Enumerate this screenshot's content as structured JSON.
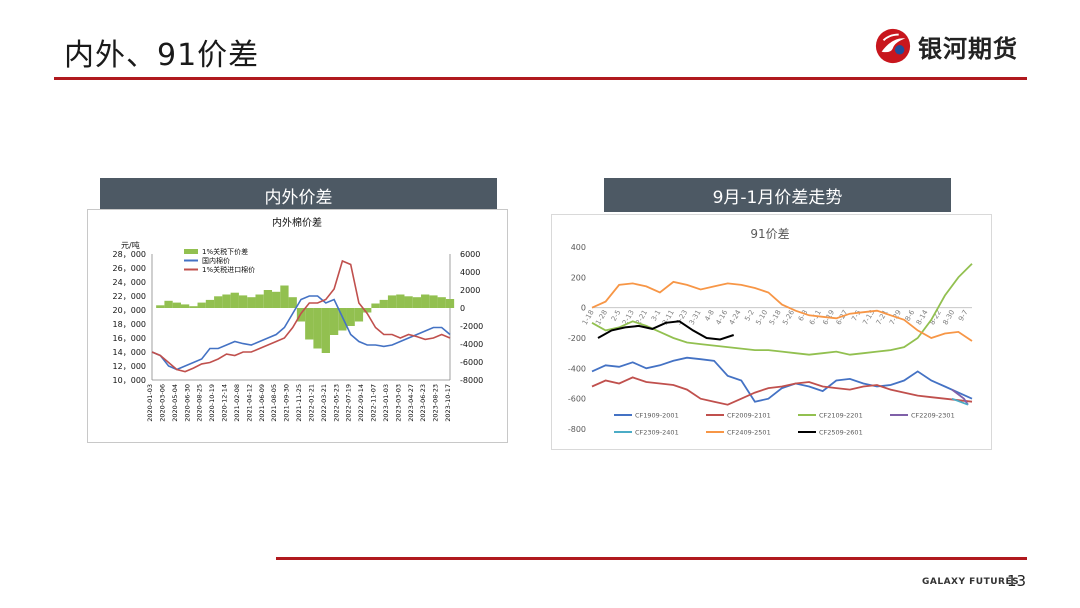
{
  "slide": {
    "title": "内外、91价差",
    "logo_text": "银河期货",
    "footer_brand": "GALAXY FUTURES",
    "page_number": "13",
    "accent_color": "#b0191e",
    "header_color": "#4d5964"
  },
  "left_panel": {
    "header": "内外价差"
  },
  "right_panel": {
    "header": "9月-1月价差走势"
  },
  "chart_data": [
    {
      "type": "line",
      "title": "内外棉价差",
      "ylabel_left": "元/吨",
      "y_left_ticks": [
        "10，000",
        "12，000",
        "14，000",
        "16，000",
        "18，000",
        "20，000",
        "22，000",
        "24，000",
        "26，000",
        "28，000"
      ],
      "y_right_ticks": [
        "-8000",
        "-6000",
        "-4000",
        "-2000",
        "0",
        "2000",
        "4000",
        "6000"
      ],
      "ylim_left": [
        10000,
        28000
      ],
      "ylim_right": [
        -8000,
        6000
      ],
      "x_ticks": [
        "2020-01-03",
        "2020-03-06",
        "2020-05-04",
        "2020-06-30",
        "2020-08-25",
        "2020-10-19",
        "2020-12-14",
        "2021-02-08",
        "2021-04-12",
        "2021-06-09",
        "2021-08-05",
        "2021-09-30",
        "2021-11-25",
        "2022-01-21",
        "2022-03-21",
        "2022-05-23",
        "2022-07-19",
        "2022-09-14",
        "2022-11-07",
        "2023-01-03",
        "2023-03-03",
        "2023-04-27",
        "2023-06-23",
        "2023-08-23",
        "2023-10-17"
      ],
      "legend": [
        "1%关税下价差",
        "国内棉价",
        "1%关税进口棉价"
      ],
      "legend_position": "top-left",
      "series": [
        {
          "name": "1%关税下价差",
          "color": "#92c050",
          "kind": "area",
          "axis": "right",
          "values": [
            0,
            300,
            800,
            600,
            400,
            200,
            600,
            900,
            1300,
            1500,
            1700,
            1400,
            1200,
            1500,
            2000,
            1800,
            2500,
            1200,
            -1500,
            -3500,
            -4500,
            -5000,
            -3000,
            -2500,
            -2000,
            -1500,
            -500,
            500,
            900,
            1400,
            1500,
            1300,
            1200,
            1500,
            1400,
            1200,
            1000
          ]
        },
        {
          "name": "国内棉价",
          "color": "#4472c4",
          "axis": "left",
          "values": [
            14000,
            13500,
            12000,
            11500,
            12000,
            12500,
            13000,
            14500,
            14500,
            15000,
            15500,
            15200,
            15000,
            15500,
            16000,
            16500,
            17500,
            19500,
            21500,
            22000,
            22000,
            21000,
            21500,
            19000,
            16500,
            15500,
            15000,
            15000,
            14800,
            15000,
            15500,
            16000,
            16500,
            17000,
            17500,
            17500,
            16500
          ]
        },
        {
          "name": "1%关税进口棉价",
          "color": "#c0504d",
          "axis": "left",
          "values": [
            14000,
            13500,
            12500,
            11500,
            11200,
            11700,
            12300,
            12500,
            13000,
            13700,
            13500,
            14000,
            14000,
            14500,
            15000,
            15500,
            16000,
            17500,
            19500,
            21000,
            21000,
            21500,
            23000,
            27000,
            26500,
            21000,
            19500,
            17500,
            16500,
            16500,
            16000,
            16500,
            16200,
            15800,
            16000,
            16500,
            16000
          ]
        }
      ]
    },
    {
      "type": "line",
      "title": "91价差",
      "y_ticks": [
        "400",
        "200",
        "0",
        "-200",
        "-400",
        "-600",
        "-800"
      ],
      "ylim": [
        -800,
        400
      ],
      "x_ticks": [
        "1-18",
        "1-28",
        "2-5",
        "2-13",
        "2-21",
        "3-1",
        "3-11",
        "3-23",
        "3-31",
        "4-8",
        "4-16",
        "4-24",
        "5-2",
        "5-10",
        "5-18",
        "5-26",
        "6-3",
        "6-11",
        "6-19",
        "6-27",
        "7-5",
        "7-13",
        "7-21",
        "7-29",
        "8-6",
        "8-14",
        "8-22",
        "8-30",
        "9-7"
      ],
      "legend": [
        "CF1909-2001",
        "CF2009-2101",
        "CF2109-2201",
        "CF2209-2301",
        "CF2309-2401",
        "CF2409-2501",
        "CF2509-2601"
      ],
      "legend_position": "bottom",
      "series": [
        {
          "name": "CF1909-2001",
          "color": "#4472c4",
          "values": [
            -420,
            -380,
            -390,
            -360,
            -400,
            -380,
            -350,
            -330,
            -340,
            -350,
            -450,
            -480,
            -620,
            -600,
            -530,
            -500,
            -520,
            -550,
            -480,
            -470,
            -500,
            -520,
            -510,
            -480,
            -420,
            -480,
            -520,
            -560,
            -600
          ]
        },
        {
          "name": "CF2009-2101",
          "color": "#c0504d",
          "values": [
            -520,
            -480,
            -500,
            -460,
            -490,
            -500,
            -510,
            -540,
            -600,
            -620,
            -640,
            -600,
            -560,
            -530,
            -520,
            -500,
            -490,
            -520,
            -530,
            -540,
            -520,
            -510,
            -540,
            -560,
            -580,
            -590,
            -600,
            -610,
            -620
          ]
        },
        {
          "name": "CF2109-2201",
          "color": "#92c050",
          "values": [
            -100,
            -150,
            -130,
            -90,
            -120,
            -160,
            -200,
            -230,
            -240,
            -250,
            -260,
            -270,
            -280,
            -280,
            -290,
            -300,
            -310,
            -300,
            -290,
            -310,
            -300,
            -290,
            -280,
            -260,
            -200,
            -80,
            80,
            200,
            290
          ]
        },
        {
          "name": "CF2209-2301",
          "color": "#7f60a8",
          "values": [
            -540,
            -560,
            -580,
            -600,
            -640
          ]
        },
        {
          "name": "CF2309-2401",
          "color": "#4bacc6",
          "values": [
            -600,
            -610,
            -620,
            -630,
            -640
          ]
        },
        {
          "name": "CF2409-2501",
          "color": "#f79646",
          "values": [
            0,
            40,
            150,
            160,
            140,
            100,
            170,
            150,
            120,
            140,
            160,
            150,
            130,
            100,
            20,
            -20,
            -50,
            -60,
            -70,
            -40,
            -30,
            -20,
            -50,
            -80,
            -150,
            -200,
            -170,
            -160,
            -220
          ]
        },
        {
          "name": "CF2509-2601",
          "color": "#000000",
          "values": [
            -200,
            -150,
            -130,
            -120,
            -140,
            -100,
            -90,
            -150,
            -200,
            -210,
            -180
          ]
        }
      ]
    }
  ]
}
